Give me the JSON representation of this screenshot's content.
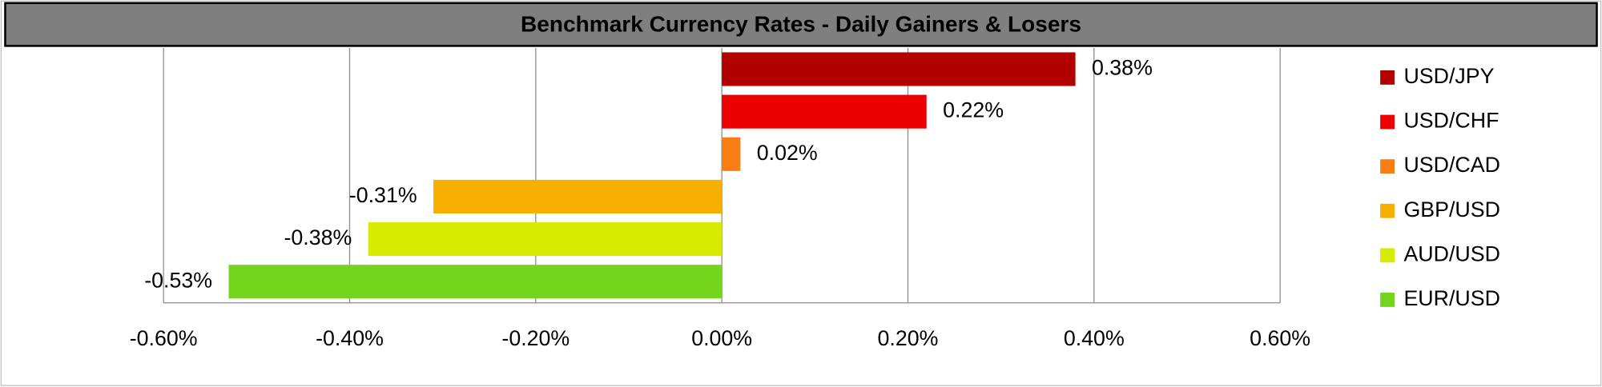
{
  "chart_data": {
    "type": "hbar",
    "title": "Benchmark Currency Rates - Daily Gainers & Losers",
    "categories": [
      "USD/JPY",
      "USD/CHF",
      "USD/CAD",
      "GBP/USD",
      "AUD/USD",
      "EUR/USD"
    ],
    "values": [
      0.38,
      0.22,
      0.02,
      -0.31,
      -0.38,
      -0.53
    ],
    "value_labels": [
      "0.38%",
      "0.22%",
      "0.02%",
      "-0.31%",
      "-0.38%",
      "-0.53%"
    ],
    "colors": [
      "#b20000",
      "#ee0000",
      "#fa7d14",
      "#f7b000",
      "#d7eb00",
      "#74d41e"
    ],
    "xlim": [
      -0.6,
      0.6
    ],
    "xticks": [
      {
        "value": -0.6,
        "label": "-0.60%"
      },
      {
        "value": -0.4,
        "label": "-0.40%"
      },
      {
        "value": -0.2,
        "label": "-0.20%"
      },
      {
        "value": 0,
        "label": "0.00%"
      },
      {
        "value": 0.2,
        "label": "0.20%"
      },
      {
        "value": 0.4,
        "label": "0.40%"
      },
      {
        "value": 0.6,
        "label": "0.60%"
      }
    ],
    "grid": true,
    "legend": "right"
  }
}
